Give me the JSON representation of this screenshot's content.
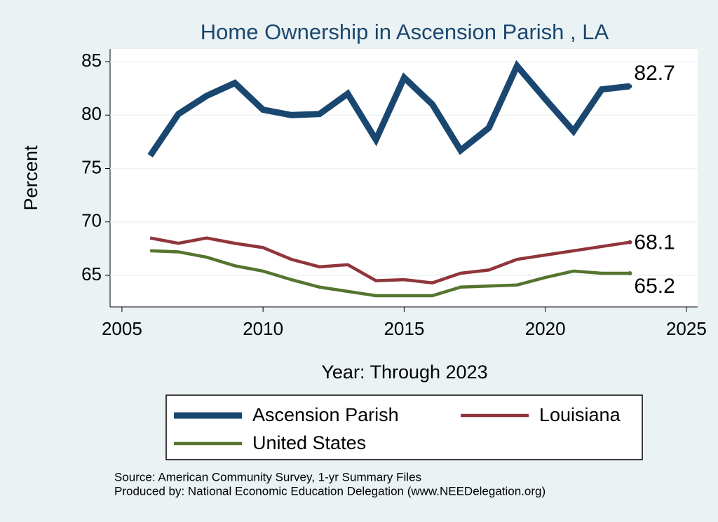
{
  "chart_data": {
    "type": "line",
    "title": "Home Ownership in Ascension Parish , LA",
    "x_label": "Year: Through 2023",
    "y_label": "Percent",
    "notes": [
      "Source: American Community Survey, 1-yr Summary Files",
      "Produced by: National Economic Education Delegation (www.NEEDelegation.org)"
    ],
    "x": [
      2006,
      2007,
      2008,
      2009,
      2010,
      2011,
      2012,
      2013,
      2014,
      2015,
      2016,
      2017,
      2018,
      2019,
      2020,
      2021,
      2022,
      2023
    ],
    "series": [
      {
        "name": "Ascension Parish",
        "color": "#1a476f",
        "values": [
          76.2,
          80.1,
          81.8,
          83.0,
          80.5,
          80.0,
          80.1,
          82.0,
          77.7,
          83.5,
          81.0,
          76.7,
          78.8,
          84.6,
          81.5,
          78.5,
          82.4,
          82.7
        ]
      },
      {
        "name": "Louisiana",
        "color": "#90353b",
        "values": [
          68.5,
          68.0,
          68.5,
          68.0,
          67.6,
          66.5,
          65.8,
          66.0,
          64.5,
          64.6,
          64.3,
          65.2,
          65.5,
          66.5,
          66.9,
          67.3,
          67.7,
          68.1
        ]
      },
      {
        "name": "United States",
        "color": "#55752f",
        "values": [
          67.3,
          67.2,
          66.7,
          65.9,
          65.4,
          64.6,
          63.9,
          63.5,
          63.1,
          63.1,
          63.1,
          63.9,
          64.0,
          64.1,
          64.8,
          65.4,
          65.2,
          65.2
        ]
      }
    ],
    "xlim": [
      2004.58,
      2025.4
    ],
    "ylim": [
      62.05,
      86.18
    ],
    "xticks": [
      2005,
      2010,
      2015,
      2020,
      2025
    ],
    "yticks": [
      65,
      70,
      75,
      80,
      85
    ],
    "grid": true,
    "legend": "bottom"
  }
}
